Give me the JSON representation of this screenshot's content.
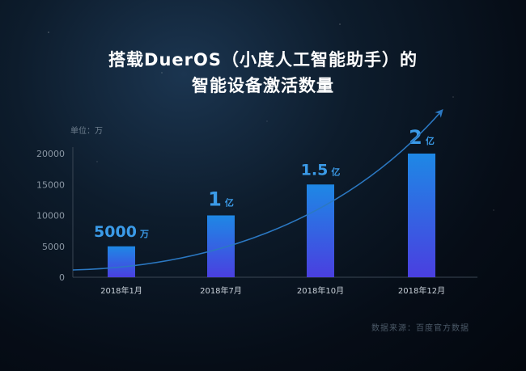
{
  "title": {
    "line1": "搭载DuerOS（小度人工智能助手）的",
    "line2": "智能设备激活数量"
  },
  "unit_label": "单位：万",
  "source": "数据来源：百度官方数据",
  "colors": {
    "bar_top": "#1e88e5",
    "bar_bottom": "#4a3fe0",
    "label": "#3b9be8",
    "axis_text": "#8a96a3",
    "trend": "#2b78c2"
  },
  "chart_data": {
    "type": "bar",
    "categories": [
      "2018年1月",
      "2018年7月",
      "2018年10月",
      "2018年12月"
    ],
    "values": [
      5000,
      10000,
      15000,
      20000
    ],
    "unit": "万",
    "ylim": [
      0,
      20000
    ],
    "yticks": [
      0,
      5000,
      10000,
      15000,
      20000
    ],
    "data_labels": [
      {
        "number": "5000",
        "unit": "万"
      },
      {
        "number": "1",
        "unit": "亿"
      },
      {
        "number": "1.5",
        "unit": "亿"
      },
      {
        "number": "2",
        "unit": "亿"
      }
    ],
    "trend_arrow": true,
    "grid": false
  }
}
